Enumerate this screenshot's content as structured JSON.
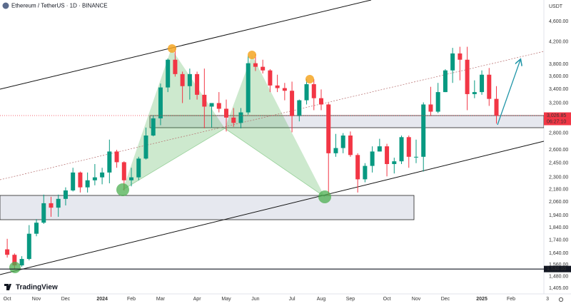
{
  "chart_data": {
    "type": "candlestick",
    "title": "Ethereum / TetherUS · 1D · BINANCE",
    "currency": "USDT",
    "brand": "TradingView",
    "log_scale": true,
    "grid": false,
    "up_color": "#089981",
    "down_color": "#f23645",
    "categories": [
      "Oct",
      null,
      null,
      null,
      "Nov",
      null,
      null,
      null,
      "Dec",
      null,
      null,
      null,
      null,
      "2024",
      null,
      null,
      null,
      "Feb",
      null,
      null,
      null,
      "Mar",
      null,
      null,
      null,
      null,
      "Apr",
      null,
      null,
      null,
      "May",
      null,
      null,
      null,
      "Jun",
      null,
      null,
      null,
      null,
      "Jul",
      null,
      null,
      null,
      "Aug",
      null,
      null,
      null,
      "Sep",
      null,
      null,
      null,
      null,
      "Oct",
      null,
      null,
      null,
      "Nov",
      null,
      null,
      null,
      "Dec",
      null,
      null,
      null,
      null,
      "2025",
      null,
      null,
      null,
      "Feb",
      null,
      null,
      null,
      null,
      "3"
    ],
    "open": [
      1670,
      1630,
      1555,
      1600,
      1790,
      1880,
      2050,
      2010,
      2090,
      2170,
      2350,
      2200,
      2270,
      2300,
      2350,
      2580,
      2460,
      2270,
      2300,
      2500,
      2770,
      2990,
      3430,
      3880,
      3640,
      3450,
      3640,
      3320,
      3150,
      3200,
      3120,
      3000,
      2930,
      3070,
      3820,
      3760,
      3700,
      3460,
      3420,
      3380,
      3020,
      3240,
      3480,
      3270,
      3180,
      2560,
      2620,
      2770,
      2540,
      2280,
      2420,
      2580,
      2640,
      2440,
      2470,
      2750,
      2520,
      2520,
      3180,
      3080,
      3360,
      3700,
      3990,
      3880,
      3330,
      3360,
      3630,
      3260,
      null,
      null,
      null,
      null,
      null,
      null,
      null
    ],
    "high": [
      1750,
      1640,
      1620,
      1860,
      1910,
      2130,
      2110,
      2130,
      2200,
      2400,
      2360,
      2350,
      2440,
      2400,
      2720,
      2600,
      2470,
      2400,
      2520,
      2870,
      3030,
      3490,
      3900,
      4090,
      3680,
      3730,
      3680,
      3730,
      3200,
      3360,
      3250,
      3130,
      3130,
      3950,
      3980,
      3880,
      3720,
      3630,
      3500,
      3520,
      3250,
      3560,
      3560,
      3400,
      3200,
      2790,
      2800,
      2820,
      2560,
      2450,
      2640,
      2730,
      2670,
      2510,
      2770,
      2770,
      2720,
      3210,
      3440,
      3500,
      3720,
      4090,
      4110,
      4110,
      3540,
      3700,
      3740,
      3450,
      null,
      null,
      null,
      null,
      null,
      null,
      null
    ],
    "low": [
      1610,
      1530,
      1545,
      1590,
      1770,
      1870,
      1930,
      1930,
      2030,
      2160,
      2150,
      2150,
      2220,
      2230,
      2240,
      2400,
      2170,
      2210,
      2270,
      2490,
      2760,
      2900,
      3360,
      3600,
      3200,
      3250,
      3250,
      2860,
      2870,
      3070,
      2820,
      2880,
      2860,
      3040,
      3690,
      3650,
      3360,
      3360,
      3240,
      2810,
      2950,
      3180,
      3100,
      3100,
      2120,
      2520,
      2560,
      2520,
      2150,
      2250,
      2350,
      2580,
      2310,
      2340,
      2440,
      2400,
      2450,
      2360,
      3020,
      3060,
      3360,
      3500,
      3540,
      3100,
      3270,
      3320,
      3160,
      2920,
      null,
      null,
      null,
      null,
      null,
      null,
      null
    ],
    "close": [
      1630,
      1555,
      1600,
      1790,
      1880,
      2050,
      2010,
      2090,
      2170,
      2350,
      2200,
      2270,
      2300,
      2350,
      2580,
      2460,
      2270,
      2300,
      2500,
      2770,
      2990,
      3430,
      3880,
      3640,
      3450,
      3640,
      3320,
      3150,
      3200,
      3120,
      3000,
      2930,
      3070,
      3820,
      3760,
      3700,
      3460,
      3420,
      3380,
      3020,
      3240,
      3480,
      3270,
      3180,
      2560,
      2620,
      2770,
      2540,
      2280,
      2420,
      2580,
      2640,
      2440,
      2470,
      2750,
      2520,
      2520,
      3180,
      3080,
      3360,
      3700,
      3990,
      3880,
      3330,
      3360,
      3630,
      3260,
      3026.85,
      null,
      null,
      null,
      null,
      null,
      null,
      null
    ],
    "ylim": [
      1370,
      5060
    ],
    "yticks": [
      {
        "value": 1405,
        "label": "1,405.00"
      },
      {
        "value": 1480,
        "label": "1,480.00"
      },
      {
        "value": 1560,
        "label": "1,560.00"
      },
      {
        "value": 1640,
        "label": "1,640.00"
      },
      {
        "value": 1740,
        "label": "1,740.00"
      },
      {
        "value": 1840,
        "label": "1,840.00"
      },
      {
        "value": 1940,
        "label": "1,940.00"
      },
      {
        "value": 2060,
        "label": "2,060.00"
      },
      {
        "value": 2180,
        "label": "2,180.00"
      },
      {
        "value": 2300,
        "label": "2,300.00"
      },
      {
        "value": 2450,
        "label": "2,450.00"
      },
      {
        "value": 2600,
        "label": "2,600.00"
      },
      {
        "value": 2800,
        "label": "2,800.00"
      },
      {
        "value": 3200,
        "label": "3,200.00"
      },
      {
        "value": 3400,
        "label": "3,400.00"
      },
      {
        "value": 3600,
        "label": "3,600.00"
      },
      {
        "value": 3800,
        "label": "3,800.00"
      },
      {
        "value": 4200,
        "label": "4,200.00"
      },
      {
        "value": 4600,
        "label": "4,600.00"
      }
    ],
    "price_line": {
      "value": 3026.85,
      "label": "3,026.85",
      "countdown": "06:27:10",
      "color": "#f23645"
    },
    "level_line": {
      "value": 1530,
      "label": "1,530.00",
      "color": "#131722"
    }
  }
}
